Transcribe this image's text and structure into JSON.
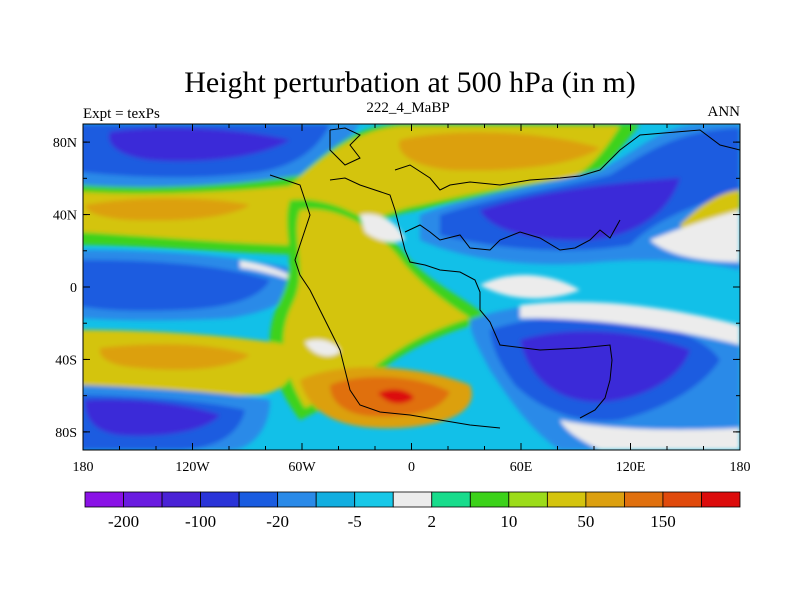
{
  "title": "Height perturbation at 500 hPa (in m)",
  "subtitle_left": "Expt = texPs",
  "subtitle_center": "222_4_MaBP",
  "subtitle_right": "ANN",
  "lat_ticks": [
    "80N",
    "40N",
    "0",
    "40S",
    "80S"
  ],
  "lon_ticks": [
    "180",
    "120W",
    "60W",
    "0",
    "60E",
    "120E",
    "180"
  ],
  "colorbar": {
    "colors": [
      "#8a12e6",
      "#6a1ce0",
      "#4a22d6",
      "#2a34d8",
      "#1a5ce0",
      "#2a8ae8",
      "#12aee0",
      "#18c8e8",
      "#ececec",
      "#18dc8c",
      "#3cd21a",
      "#9cdc1a",
      "#d4c40e",
      "#dca010",
      "#e0700e",
      "#e04a0c",
      "#dc0c0c"
    ],
    "labels": [
      "-200",
      "-100",
      "-20",
      "-5",
      "2",
      "10",
      "50",
      "150"
    ]
  },
  "field_colors": {
    "deep_low": "#3a2ad8",
    "low": "#1a5ce0",
    "mid_low": "#2a8ae8",
    "weak_low": "#12c0e8",
    "neutral": "#ececec",
    "weak_high": "#18dc8c",
    "mid_high": "#3cd21a",
    "high_light": "#9cdc1a",
    "high": "#d4c40e",
    "higher": "#dca010",
    "peak": "#e0700e",
    "extreme": "#dc0c0c"
  }
}
